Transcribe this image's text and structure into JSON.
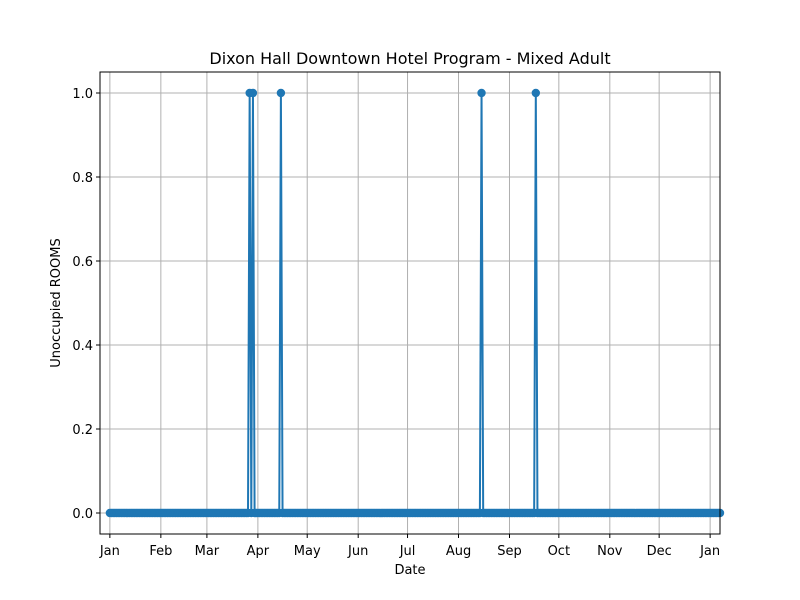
{
  "chart_data": {
    "type": "line",
    "title": "Dixon Hall Downtown Hotel Program - Mixed Adult",
    "xlabel": "Date",
    "ylabel": "Unoccupied ROOMS",
    "x_start": "2022-01-01",
    "x_end": "2023-01-01",
    "xlim_days": [
      -6,
      371
    ],
    "ylim": [
      -0.05,
      1.05
    ],
    "grid": true,
    "marker": "circle",
    "series_color": "#1f77b4",
    "grid_color": "#b0b0b0",
    "x_ticks": [
      {
        "day": 0,
        "label": "Jan"
      },
      {
        "day": 31,
        "label": "Feb"
      },
      {
        "day": 59,
        "label": "Mar"
      },
      {
        "day": 90,
        "label": "Apr"
      },
      {
        "day": 120,
        "label": "May"
      },
      {
        "day": 151,
        "label": "Jun"
      },
      {
        "day": 181,
        "label": "Jul"
      },
      {
        "day": 212,
        "label": "Aug"
      },
      {
        "day": 243,
        "label": "Sep"
      },
      {
        "day": 273,
        "label": "Oct"
      },
      {
        "day": 304,
        "label": "Nov"
      },
      {
        "day": 334,
        "label": "Dec"
      },
      {
        "day": 365,
        "label": "Jan"
      }
    ],
    "y_ticks": [
      {
        "value": 0.0,
        "label": "0.0"
      },
      {
        "value": 0.2,
        "label": "0.2"
      },
      {
        "value": 0.4,
        "label": "0.4"
      },
      {
        "value": 0.6,
        "label": "0.6"
      },
      {
        "value": 0.8,
        "label": "0.8"
      },
      {
        "value": 1.0,
        "label": "1.0"
      }
    ],
    "series": [
      {
        "name": "Unoccupied ROOMS",
        "baseline_value": 0,
        "day_range": [
          0,
          371
        ],
        "points_at_one": [
          85,
          87,
          104,
          226,
          259
        ]
      }
    ]
  }
}
